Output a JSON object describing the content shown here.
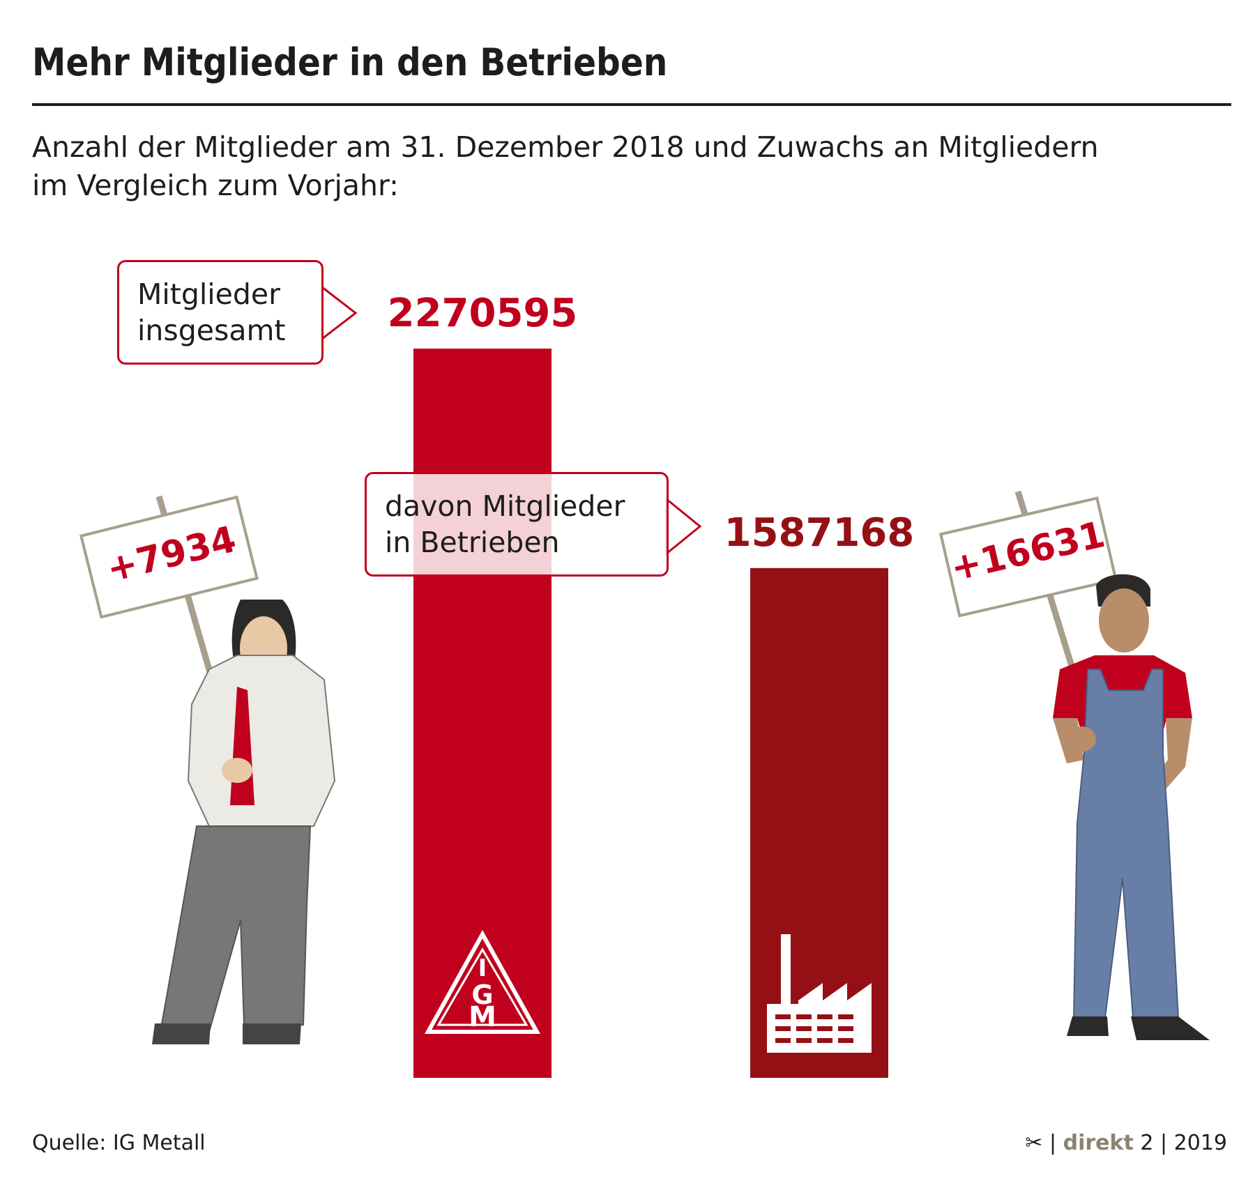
{
  "title": "Mehr Mitglieder in den Betrieben",
  "subtitle_line1": "Anzahl der Mitglieder am 31. Dezember 2018 und Zuwachs an Mitgliedern",
  "subtitle_line2": "im Vergleich zum Vorjahr:",
  "callouts": {
    "total_line1": "Mitglieder",
    "total_line2": "insgesamt",
    "betriebe_line1": "davon Mitglieder",
    "betriebe_line2": "in Betrieben"
  },
  "signs": {
    "left": "+7934",
    "right": "+16631"
  },
  "chart_data": {
    "type": "bar",
    "categories": [
      "Mitglieder insgesamt",
      "davon Mitglieder in Betrieben"
    ],
    "values": [
      2270595,
      1587168
    ],
    "value_labels": [
      "2270595",
      "1587168"
    ],
    "growth": [
      "+7934",
      "+16631"
    ],
    "colors": [
      "#c0001d",
      "#951015"
    ],
    "ylim": [
      0,
      2270595
    ],
    "grid": false
  },
  "logos": {
    "igm": "IGM",
    "factory_icon": "factory-icon"
  },
  "footer": {
    "source": "Quelle: IG Metall",
    "scissors_icon": "scissors-icon",
    "brand": "direkt",
    "issue": "2",
    "year": "2019"
  }
}
